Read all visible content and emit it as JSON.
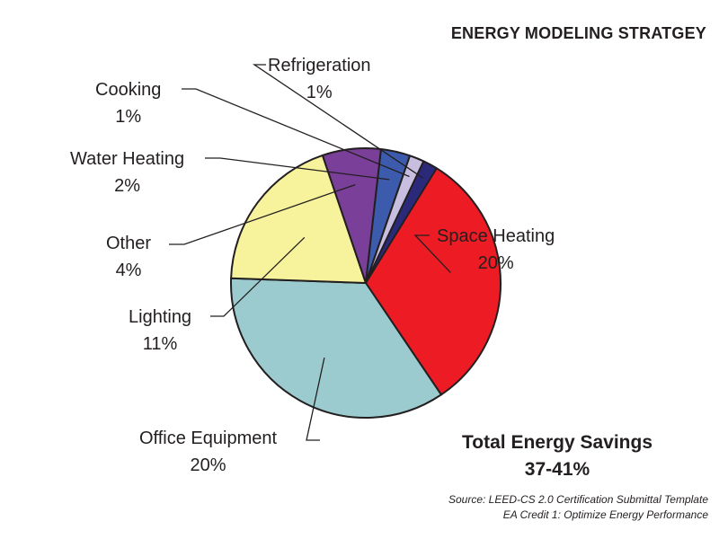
{
  "title": "ENERGY MODELING STRATGEY",
  "chart_data": {
    "type": "pie",
    "title": "ENERGY MODELING STRATGEY",
    "slices": [
      {
        "label": "Space Heating",
        "percent_text": "20%",
        "value": 20,
        "color": "#ed1c24"
      },
      {
        "label": "Office Equipment",
        "percent_text": "20%",
        "value": 20,
        "color": "#9bcbce"
      },
      {
        "label": "Lighting",
        "percent_text": "11%",
        "value": 11,
        "color": "#f7f39c"
      },
      {
        "label": "Other",
        "percent_text": "4%",
        "value": 4,
        "color": "#7a3f98"
      },
      {
        "label": "Water Heating",
        "percent_text": "2%",
        "value": 2,
        "color": "#3c5bac"
      },
      {
        "label": "Cooking",
        "percent_text": "1%",
        "value": 1,
        "color": "#c8bfe0"
      },
      {
        "label": "Refrigeration",
        "percent_text": "1%",
        "value": 1,
        "color": "#2b2a7a"
      }
    ]
  },
  "total": {
    "line1": "Total Energy Savings",
    "line2": "37-41%"
  },
  "source": {
    "line1": "Source: LEED-CS 2.0 Certification Submittal Template",
    "line2": "EA Credit 1: Optimize Energy Performance"
  }
}
